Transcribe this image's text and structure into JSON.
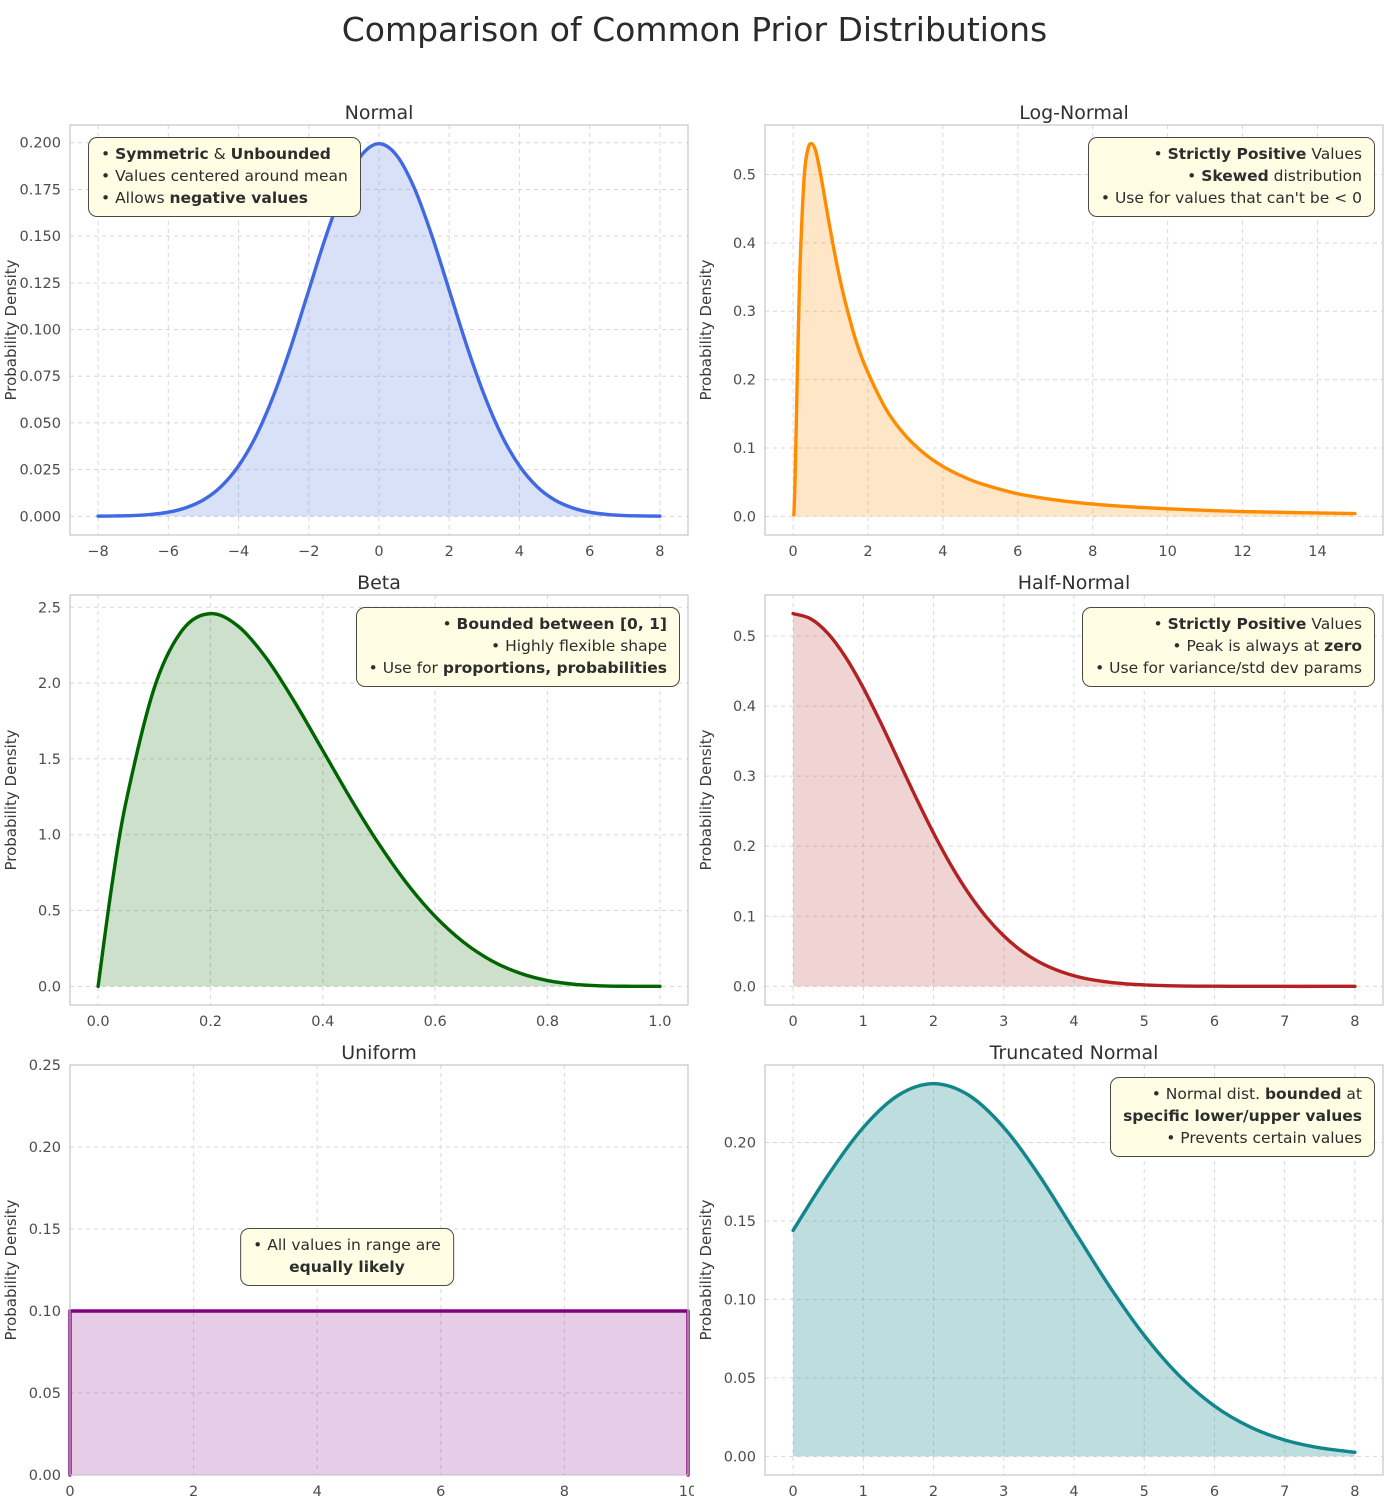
{
  "figure_title": "Comparison of Common Prior Distributions",
  "style": {
    "annotation_bg": "#fffee5",
    "annotation_border": "#4a4a40",
    "grid_color": "#d8d8d8",
    "spine_color": "#c6c6c6",
    "title_color": "#303030",
    "tick_color": "#4c4c4c"
  },
  "chart_data": [
    {
      "id": "normal",
      "type": "area",
      "title": "Normal",
      "ylabel": "Probability Density",
      "line_color": "#4169e1",
      "fill_opacity": 0.2,
      "smooth": true,
      "grid": true,
      "xlim": [
        -8.8,
        8.8
      ],
      "ylim": [
        -0.01,
        0.2095
      ],
      "xticks": [
        -8,
        -6,
        -4,
        -2,
        0,
        2,
        4,
        6,
        8
      ],
      "xtick_labels": [
        "−8",
        "−6",
        "−4",
        "−2",
        "0",
        "2",
        "4",
        "6",
        "8"
      ],
      "yticks": [
        0,
        0.025,
        0.05,
        0.075,
        0.1,
        0.125,
        0.15,
        0.175,
        0.2
      ],
      "ytick_labels": [
        "0.000",
        "0.025",
        "0.050",
        "0.075",
        "0.100",
        "0.125",
        "0.150",
        "0.175",
        "0.200"
      ],
      "x": [
        -8,
        -7.5,
        -7,
        -6.5,
        -6,
        -5.5,
        -5,
        -4.5,
        -4,
        -3.5,
        -3,
        -2.5,
        -2,
        -1.5,
        -1,
        -0.5,
        0,
        0.5,
        1,
        1.5,
        2,
        2.5,
        3,
        3.5,
        4,
        4.5,
        5,
        5.5,
        6,
        6.5,
        7,
        7.5,
        8
      ],
      "y": [
        0.0001,
        0.0002,
        0.0004,
        0.001,
        0.0022,
        0.0046,
        0.0088,
        0.0159,
        0.027,
        0.0431,
        0.0648,
        0.0913,
        0.121,
        0.1506,
        0.176,
        0.1933,
        0.1995,
        0.1933,
        0.176,
        0.1506,
        0.121,
        0.0913,
        0.0648,
        0.0431,
        0.027,
        0.0159,
        0.0088,
        0.0046,
        0.0022,
        0.001,
        0.0004,
        0.0002,
        0.0001
      ],
      "annotation": {
        "align": "left",
        "anchor": "top-left",
        "lines": [
          [
            {
              "t": "• ",
              "b": false
            },
            {
              "t": "Symmetric",
              "b": true
            },
            {
              "t": " & ",
              "b": false
            },
            {
              "t": "Unbounded",
              "b": true
            }
          ],
          [
            {
              "t": "• Values centered around mean",
              "b": false
            }
          ],
          [
            {
              "t": "• Allows ",
              "b": false
            },
            {
              "t": "negative values",
              "b": true
            }
          ]
        ]
      }
    },
    {
      "id": "log-normal",
      "type": "area",
      "title": "Log-Normal",
      "ylabel": "Probability Density",
      "line_color": "#ff8c00",
      "fill_opacity": 0.22,
      "smooth": true,
      "grid": true,
      "xlim": [
        -0.75,
        15.75
      ],
      "ylim": [
        -0.0273,
        0.5723
      ],
      "xticks": [
        0,
        2,
        4,
        6,
        8,
        10,
        12,
        14
      ],
      "xtick_labels": [
        "0",
        "2",
        "4",
        "6",
        "8",
        "10",
        "12",
        "14"
      ],
      "yticks": [
        0,
        0.1,
        0.2,
        0.3,
        0.4,
        0.5
      ],
      "ytick_labels": [
        "0.0",
        "0.1",
        "0.2",
        "0.3",
        "0.4",
        "0.5"
      ],
      "x": [
        0.02,
        0.05,
        0.1,
        0.15,
        0.2,
        0.3,
        0.4,
        0.5,
        0.6,
        0.7,
        0.8,
        0.9,
        1.0,
        1.2,
        1.4,
        1.7,
        2.0,
        2.5,
        3.0,
        3.5,
        4.0,
        4.5,
        5.0,
        6.0,
        7.0,
        8.0,
        9.0,
        10.0,
        12.0,
        15.0
      ],
      "y": [
        0.002,
        0.048,
        0.174,
        0.295,
        0.388,
        0.5,
        0.538,
        0.545,
        0.535,
        0.51,
        0.48,
        0.448,
        0.417,
        0.36,
        0.312,
        0.253,
        0.21,
        0.155,
        0.118,
        0.092,
        0.073,
        0.059,
        0.048,
        0.033,
        0.024,
        0.018,
        0.014,
        0.011,
        0.007,
        0.004
      ],
      "annotation": {
        "align": "right",
        "anchor": "top-right",
        "lines": [
          [
            {
              "t": "• ",
              "b": false
            },
            {
              "t": "Strictly Positive",
              "b": true
            },
            {
              "t": " Values",
              "b": false
            }
          ],
          [
            {
              "t": "• ",
              "b": false
            },
            {
              "t": "Skewed",
              "b": true
            },
            {
              "t": " distribution",
              "b": false
            }
          ],
          [
            {
              "t": "• Use for values that can't be < 0",
              "b": false
            }
          ]
        ]
      }
    },
    {
      "id": "beta",
      "type": "area",
      "title": "Beta",
      "ylabel": "Probability Density",
      "line_color": "#006400",
      "fill_opacity": 0.2,
      "smooth": true,
      "grid": true,
      "xlim": [
        -0.05,
        1.05
      ],
      "ylim": [
        -0.1229,
        2.5808
      ],
      "xticks": [
        0,
        0.2,
        0.4,
        0.6,
        0.8,
        1.0
      ],
      "xtick_labels": [
        "0.0",
        "0.2",
        "0.4",
        "0.6",
        "0.8",
        "1.0"
      ],
      "yticks": [
        0,
        0.5,
        1.0,
        1.5,
        2.0,
        2.5
      ],
      "ytick_labels": [
        "0.0",
        "0.5",
        "1.0",
        "1.5",
        "2.0",
        "2.5"
      ],
      "x": [
        0,
        0.025,
        0.05,
        0.1,
        0.15,
        0.2,
        0.25,
        0.3,
        0.35,
        0.4,
        0.45,
        0.5,
        0.55,
        0.6,
        0.65,
        0.7,
        0.75,
        0.8,
        0.85,
        0.9,
        0.95,
        1.0
      ],
      "y": [
        0,
        0.678,
        1.222,
        1.968,
        2.349,
        2.458,
        2.373,
        2.161,
        1.874,
        1.555,
        1.235,
        0.938,
        0.677,
        0.461,
        0.293,
        0.17,
        0.088,
        0.038,
        0.013,
        0.003,
        0.0005,
        0
      ],
      "annotation": {
        "align": "right",
        "anchor": "top-right",
        "lines": [
          [
            {
              "t": "• ",
              "b": false
            },
            {
              "t": "Bounded between [0, 1]",
              "b": true
            }
          ],
          [
            {
              "t": "• Highly flexible shape",
              "b": false
            }
          ],
          [
            {
              "t": "• Use for ",
              "b": false
            },
            {
              "t": "proportions, probabilities",
              "b": true
            }
          ]
        ]
      }
    },
    {
      "id": "half-normal",
      "type": "area",
      "title": "Half-Normal",
      "ylabel": "Probability Density",
      "line_color": "#b22222",
      "fill_opacity": 0.2,
      "smooth": true,
      "grid": true,
      "xlim": [
        -0.4,
        8.4
      ],
      "ylim": [
        -0.0266,
        0.5585
      ],
      "xticks": [
        0,
        1,
        2,
        3,
        4,
        5,
        6,
        7,
        8
      ],
      "xtick_labels": [
        "0",
        "1",
        "2",
        "3",
        "4",
        "5",
        "6",
        "7",
        "8"
      ],
      "yticks": [
        0,
        0.1,
        0.2,
        0.3,
        0.4,
        0.5
      ],
      "ytick_labels": [
        "0.0",
        "0.1",
        "0.2",
        "0.3",
        "0.4",
        "0.5"
      ],
      "x": [
        0,
        0.25,
        0.5,
        0.75,
        1,
        1.25,
        1.5,
        1.75,
        2,
        2.25,
        2.5,
        2.75,
        3,
        3.25,
        3.5,
        3.75,
        4,
        4.25,
        4.5,
        4.75,
        5,
        5.5,
        6,
        6.5,
        7,
        7.5,
        8
      ],
      "y": [
        0.5319,
        0.5246,
        0.5032,
        0.4694,
        0.4259,
        0.3758,
        0.3226,
        0.2693,
        0.2187,
        0.1727,
        0.1327,
        0.0991,
        0.072,
        0.0508,
        0.0349,
        0.0234,
        0.0152,
        0.0096,
        0.0059,
        0.0035,
        0.0021,
        0.0006,
        0.0002,
        0.0001,
        0,
        0,
        0
      ],
      "annotation": {
        "align": "right",
        "anchor": "top-right",
        "lines": [
          [
            {
              "t": "• ",
              "b": false
            },
            {
              "t": "Strictly Positive",
              "b": true
            },
            {
              "t": " Values",
              "b": false
            }
          ],
          [
            {
              "t": "• Peak is always at ",
              "b": false
            },
            {
              "t": "zero",
              "b": true
            }
          ],
          [
            {
              "t": "• Use for variance/std dev params",
              "b": false
            }
          ]
        ]
      }
    },
    {
      "id": "uniform",
      "type": "area",
      "title": "Uniform",
      "ylabel": "Probability Density",
      "line_color": "#800080",
      "fill_opacity": 0.2,
      "smooth": false,
      "grid": true,
      "xlim": [
        0,
        10
      ],
      "ylim": [
        0,
        0.25
      ],
      "xticks": [
        0,
        2,
        4,
        6,
        8,
        10
      ],
      "xtick_labels": [
        "0",
        "2",
        "4",
        "6",
        "8",
        "10"
      ],
      "yticks": [
        0,
        0.05,
        0.1,
        0.15,
        0.2,
        0.25
      ],
      "ytick_labels": [
        "0.00",
        "0.05",
        "0.10",
        "0.15",
        "0.20",
        "0.25"
      ],
      "x": [
        0,
        0,
        10,
        10
      ],
      "y": [
        0,
        0.1,
        0.1,
        0
      ],
      "annotation": {
        "align": "center",
        "anchor": "center",
        "top": 193,
        "lines": [
          [
            {
              "t": "• All values in range are",
              "b": false
            }
          ],
          [
            {
              "t": "equally likely",
              "b": true
            }
          ]
        ]
      }
    },
    {
      "id": "truncated-normal",
      "type": "area",
      "title": "Truncated Normal",
      "ylabel": "Probability Density",
      "line_color": "#11868b",
      "fill_opacity": 0.28,
      "smooth": true,
      "grid": true,
      "xlim": [
        -0.4,
        8.4
      ],
      "ylim": [
        -0.0119,
        0.2494
      ],
      "xticks": [
        0,
        1,
        2,
        3,
        4,
        5,
        6,
        7,
        8
      ],
      "xtick_labels": [
        "0",
        "1",
        "2",
        "3",
        "4",
        "5",
        "6",
        "7",
        "8"
      ],
      "yticks": [
        0,
        0.05,
        0.1,
        0.15,
        0.2
      ],
      "ytick_labels": [
        "0.00",
        "0.05",
        "0.10",
        "0.15",
        "0.20"
      ],
      "x": [
        0,
        0.5,
        1,
        1.5,
        2,
        2.5,
        3,
        3.5,
        4,
        4.5,
        5,
        5.5,
        6,
        6.5,
        7,
        7.5,
        8
      ],
      "y": [
        0.144,
        0.1793,
        0.2096,
        0.2302,
        0.2375,
        0.2302,
        0.2096,
        0.1793,
        0.144,
        0.1087,
        0.0771,
        0.0513,
        0.0321,
        0.0189,
        0.0104,
        0.0054,
        0.0026
      ],
      "annotation": {
        "align": "right",
        "anchor": "top-right",
        "lines": [
          [
            {
              "t": "• Normal dist. ",
              "b": false
            },
            {
              "t": "bounded",
              "b": true
            },
            {
              "t": " at",
              "b": false
            }
          ],
          [
            {
              "t": "specific lower/upper values",
              "b": true
            }
          ],
          [
            {
              "t": "• Prevents certain values",
              "b": false
            }
          ]
        ]
      }
    }
  ]
}
